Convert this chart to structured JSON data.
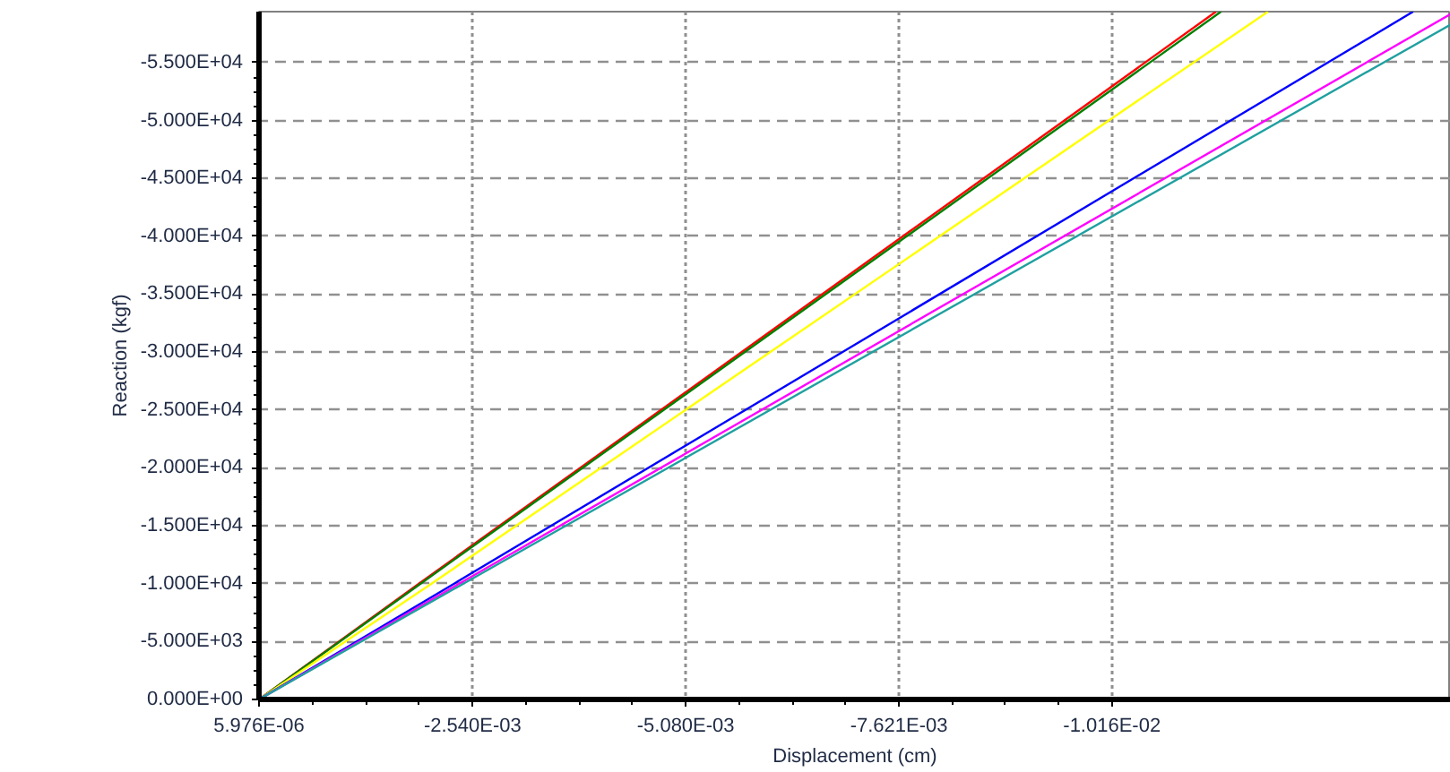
{
  "chart_data": {
    "type": "line",
    "xlabel": "Displacement (cm)",
    "ylabel": "Reaction (kgf)",
    "xlim": [
      5.976e-06,
      -0.0142
    ],
    "ylim": [
      0,
      -59400
    ],
    "xticks": [
      {
        "value": 5.976e-06,
        "label": "5.976E-06"
      },
      {
        "value": -0.00254,
        "label": "-2.540E-03"
      },
      {
        "value": -0.00508,
        "label": "-5.080E-03"
      },
      {
        "value": -0.007621,
        "label": "-7.621E-03"
      },
      {
        "value": -0.01016,
        "label": "-1.016E-02"
      }
    ],
    "yticks": [
      {
        "value": 0,
        "label": "0.000E+00"
      },
      {
        "value": -5000,
        "label": "-5.000E+03"
      },
      {
        "value": -10000,
        "label": "-1.000E+04"
      },
      {
        "value": -15000,
        "label": "-1.500E+04"
      },
      {
        "value": -20000,
        "label": "-2.000E+04"
      },
      {
        "value": -25000,
        "label": "-2.500E+04"
      },
      {
        "value": -30000,
        "label": "-3.000E+04"
      },
      {
        "value": -35000,
        "label": "-3.500E+04"
      },
      {
        "value": -40000,
        "label": "-4.000E+04"
      },
      {
        "value": -45000,
        "label": "-4.500E+04"
      },
      {
        "value": -50000,
        "label": "-5.000E+04"
      },
      {
        "value": -55000,
        "label": "-5.500E+04"
      }
    ],
    "grid": true,
    "line_style": "solid",
    "series": [
      {
        "color": "#ff0000",
        "x": [
          5.976e-06,
          -0.0019,
          -0.0114
        ],
        "values": [
          0,
          -10000,
          -59400
        ]
      },
      {
        "color": "#008000",
        "x": [
          5.976e-06,
          -0.00192,
          -0.01146
        ],
        "values": [
          0,
          -10000,
          -59400
        ]
      },
      {
        "color": "#ffff00",
        "x": [
          5.976e-06,
          -0.00205,
          -0.01202
        ],
        "values": [
          0,
          -10000,
          -59400
        ]
      },
      {
        "color": "#0000ff",
        "x": [
          5.976e-06,
          -0.00232,
          -0.01375
        ],
        "values": [
          0,
          -10000,
          -59400
        ]
      },
      {
        "color": "#ff00ff",
        "x": [
          5.976e-06,
          -0.00238,
          -0.0142
        ],
        "values": [
          0,
          -10000,
          -59200
        ]
      },
      {
        "color": "#20a0a0",
        "x": [
          5.976e-06,
          -0.00243,
          -0.0142
        ],
        "values": [
          0,
          -10000,
          -58300
        ]
      }
    ]
  }
}
